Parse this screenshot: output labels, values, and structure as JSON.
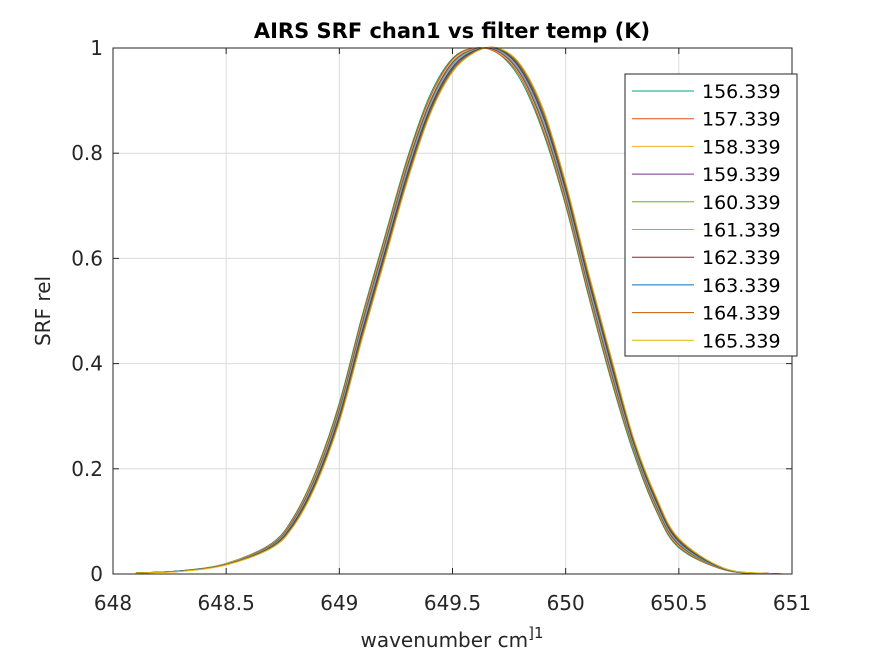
{
  "chart_data": {
    "type": "line",
    "title": "AIRS SRF chan1 vs filter temp (K)",
    "xlabel": "wavenumber cm",
    "xlabel_superscript": "]1",
    "ylabel": "SRF rel",
    "xlim": [
      648,
      651
    ],
    "ylim": [
      0,
      1
    ],
    "xticks": [
      648,
      648.5,
      649,
      649.5,
      650,
      650.5,
      651
    ],
    "xtick_labels": [
      "648",
      "648.5",
      "649",
      "649.5",
      "650",
      "650.5",
      "651"
    ],
    "yticks": [
      0,
      0.2,
      0.4,
      0.6,
      0.8,
      1
    ],
    "ytick_labels": [
      "0",
      "0.2",
      "0.4",
      "0.6",
      "0.8",
      "1"
    ],
    "grid": true,
    "legend_position": "top-right",
    "x": [
      648.1,
      648.3,
      648.5,
      648.7,
      648.8,
      648.9,
      649.0,
      649.1,
      649.2,
      649.3,
      649.4,
      649.5,
      649.6,
      649.7,
      649.8,
      649.9,
      650.0,
      650.1,
      650.2,
      650.3,
      650.4,
      650.5,
      650.7,
      650.9,
      651.0
    ],
    "series": [
      {
        "name": "156.339",
        "color": "#00a08a",
        "values": [
          0.002,
          0.006,
          0.02,
          0.058,
          0.11,
          0.2,
          0.325,
          0.49,
          0.64,
          0.79,
          0.91,
          0.98,
          1.0,
          0.99,
          0.94,
          0.84,
          0.7,
          0.53,
          0.37,
          0.23,
          0.12,
          0.05,
          0.008,
          0.001,
          0.0
        ]
      },
      {
        "name": "157.339",
        "color": "#d95319",
        "values": [
          0.002,
          0.006,
          0.02,
          0.057,
          0.108,
          0.197,
          0.32,
          0.485,
          0.635,
          0.785,
          0.905,
          0.978,
          1.0,
          0.99,
          0.945,
          0.845,
          0.705,
          0.535,
          0.375,
          0.235,
          0.123,
          0.052,
          0.008,
          0.001,
          0.0
        ]
      },
      {
        "name": "158.339",
        "color": "#edb120",
        "values": [
          0.002,
          0.006,
          0.02,
          0.056,
          0.106,
          0.194,
          0.316,
          0.48,
          0.63,
          0.78,
          0.9,
          0.975,
          0.999,
          0.992,
          0.948,
          0.85,
          0.71,
          0.54,
          0.38,
          0.238,
          0.126,
          0.054,
          0.009,
          0.001,
          0.0
        ]
      },
      {
        "name": "159.339",
        "color": "#7e2f8e",
        "values": [
          0.002,
          0.006,
          0.019,
          0.055,
          0.104,
          0.19,
          0.312,
          0.475,
          0.625,
          0.775,
          0.896,
          0.972,
          0.998,
          0.994,
          0.951,
          0.855,
          0.715,
          0.545,
          0.385,
          0.241,
          0.129,
          0.056,
          0.009,
          0.001,
          0.0
        ]
      },
      {
        "name": "160.339",
        "color": "#77ac30",
        "values": [
          0.002,
          0.006,
          0.019,
          0.054,
          0.102,
          0.187,
          0.308,
          0.47,
          0.62,
          0.77,
          0.892,
          0.969,
          0.997,
          0.996,
          0.954,
          0.86,
          0.72,
          0.55,
          0.39,
          0.244,
          0.132,
          0.058,
          0.009,
          0.001,
          0.0
        ]
      },
      {
        "name": "161.339",
        "color": "#4dbeee",
        "values": [
          0.002,
          0.006,
          0.019,
          0.053,
          0.1,
          0.184,
          0.304,
          0.465,
          0.615,
          0.765,
          0.888,
          0.966,
          0.996,
          0.997,
          0.957,
          0.865,
          0.725,
          0.555,
          0.395,
          0.247,
          0.135,
          0.06,
          0.01,
          0.001,
          0.0
        ]
      },
      {
        "name": "162.339",
        "color": "#a2142f",
        "values": [
          0.002,
          0.006,
          0.018,
          0.052,
          0.098,
          0.181,
          0.3,
          0.46,
          0.61,
          0.76,
          0.884,
          0.963,
          0.995,
          0.998,
          0.96,
          0.87,
          0.73,
          0.56,
          0.4,
          0.25,
          0.138,
          0.062,
          0.01,
          0.001,
          0.0
        ]
      },
      {
        "name": "163.339",
        "color": "#0072bd",
        "values": [
          0.002,
          0.006,
          0.018,
          0.051,
          0.096,
          0.178,
          0.296,
          0.455,
          0.605,
          0.755,
          0.88,
          0.96,
          0.994,
          0.999,
          0.963,
          0.875,
          0.735,
          0.565,
          0.405,
          0.253,
          0.141,
          0.064,
          0.01,
          0.001,
          0.0
        ]
      },
      {
        "name": "164.339",
        "color": "#c65a00",
        "values": [
          0.002,
          0.005,
          0.018,
          0.05,
          0.094,
          0.175,
          0.292,
          0.45,
          0.6,
          0.75,
          0.876,
          0.957,
          0.993,
          1.0,
          0.966,
          0.88,
          0.74,
          0.57,
          0.41,
          0.256,
          0.144,
          0.066,
          0.011,
          0.001,
          0.0
        ]
      },
      {
        "name": "165.339",
        "color": "#e6b800",
        "values": [
          0.002,
          0.005,
          0.017,
          0.049,
          0.092,
          0.172,
          0.288,
          0.445,
          0.595,
          0.745,
          0.872,
          0.954,
          0.992,
          1.0,
          0.969,
          0.885,
          0.745,
          0.575,
          0.415,
          0.259,
          0.147,
          0.068,
          0.011,
          0.001,
          0.0
        ]
      }
    ]
  }
}
